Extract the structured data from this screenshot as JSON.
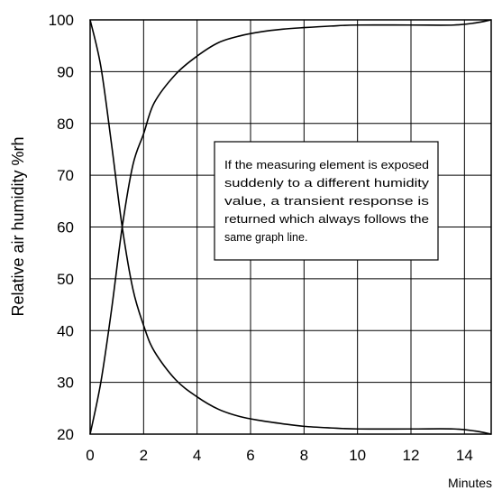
{
  "chart_data": {
    "type": "line",
    "xlabel": "Minutes",
    "ylabel": "Relative air humidity %rh",
    "xlim": [
      0,
      15
    ],
    "ylim": [
      20,
      100
    ],
    "x_ticks": [
      0,
      2,
      4,
      6,
      8,
      10,
      12,
      14
    ],
    "y_ticks": [
      20,
      30,
      40,
      50,
      60,
      70,
      80,
      90,
      100
    ],
    "grid": true,
    "legend": "none",
    "series": [
      {
        "x": [
          0,
          0.4,
          0.8,
          1.2,
          1.6,
          2.0,
          2.4,
          3.2,
          4.0,
          4.8,
          5.6,
          6.4,
          7.2,
          8.0,
          9.0,
          10.0,
          12.0,
          13.6,
          14.4,
          15.0
        ],
        "values": [
          20,
          30,
          44,
          60,
          72,
          78,
          84,
          89.5,
          93,
          95.6,
          96.9,
          97.7,
          98.2,
          98.5,
          98.8,
          99,
          99,
          99,
          99.4,
          100
        ]
      },
      {
        "x": [
          0,
          0.4,
          0.8,
          1.2,
          1.6,
          2.0,
          2.4,
          3.2,
          4.0,
          4.8,
          5.6,
          6.4,
          7.2,
          8.0,
          9.0,
          10.0,
          12.0,
          13.6,
          14.4,
          15.0
        ],
        "values": [
          100,
          91,
          76,
          60,
          48,
          41,
          36,
          30.5,
          27.2,
          24.8,
          23.4,
          22.6,
          22,
          21.5,
          21.2,
          21,
          21,
          21,
          20.6,
          20
        ]
      }
    ],
    "annotation": {
      "lines": [
        "If the measuring element is exposed",
        "suddenly  to a different humidity",
        "value, a transient response is",
        "returned which always follows the",
        "same graph line."
      ]
    }
  }
}
